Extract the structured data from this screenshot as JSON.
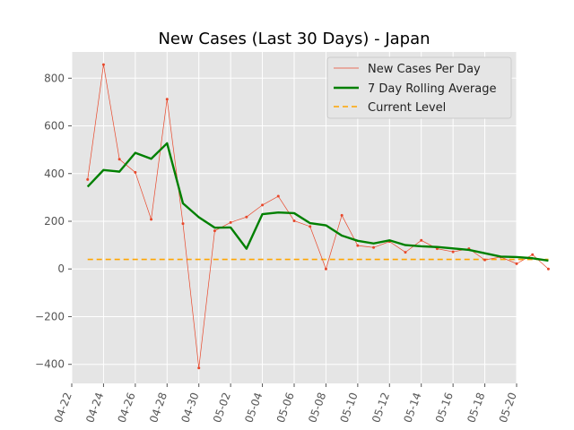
{
  "chart_data": {
    "type": "line",
    "title": "New Cases (Last 30 Days) - Japan",
    "xlabel": "",
    "ylabel": "",
    "xlim": [
      "2020-04-22",
      "2020-05-20"
    ],
    "ylim": [
      -480,
      910
    ],
    "x_ticks": [
      "04-22",
      "04-24",
      "04-26",
      "04-28",
      "04-30",
      "05-02",
      "05-04",
      "05-06",
      "05-08",
      "05-10",
      "05-12",
      "05-14",
      "05-16",
      "05-18",
      "05-20"
    ],
    "y_ticks": [
      -400,
      -200,
      0,
      200,
      400,
      600,
      800
    ],
    "y_tick_labels": [
      "−400",
      "−200",
      "0",
      "200",
      "400",
      "600",
      "800"
    ],
    "grid": true,
    "legend_position": "top-right",
    "series": [
      {
        "name": "New Cases Per Day",
        "color": "#e8482b",
        "style": "thin-line-with-markers",
        "x": [
          "2020-04-23",
          "2020-04-24",
          "2020-04-25",
          "2020-04-26",
          "2020-04-27",
          "2020-04-28",
          "2020-04-29",
          "2020-04-30",
          "2020-05-01",
          "2020-05-02",
          "2020-05-03",
          "2020-05-04",
          "2020-05-05",
          "2020-05-06",
          "2020-05-07",
          "2020-05-08",
          "2020-05-09",
          "2020-05-10",
          "2020-05-11",
          "2020-05-12",
          "2020-05-13",
          "2020-05-14",
          "2020-05-15",
          "2020-05-16",
          "2020-05-17",
          "2020-05-18",
          "2020-05-19",
          "2020-05-20",
          "2020-05-21",
          "2020-05-22"
        ],
        "values": [
          375,
          857,
          460,
          405,
          208,
          712,
          190,
          -415,
          160,
          195,
          218,
          268,
          305,
          202,
          178,
          0,
          225,
          98,
          90,
          115,
          70,
          120,
          85,
          72,
          85,
          38,
          50,
          22,
          60,
          0
        ]
      },
      {
        "name": "7 Day Rolling Average",
        "color": "#008000",
        "style": "thick-line",
        "x": [
          "2020-04-23",
          "2020-04-24",
          "2020-04-25",
          "2020-04-26",
          "2020-04-27",
          "2020-04-28",
          "2020-04-29",
          "2020-04-30",
          "2020-05-01",
          "2020-05-02",
          "2020-05-03",
          "2020-05-04",
          "2020-05-05",
          "2020-05-06",
          "2020-05-07",
          "2020-05-08",
          "2020-05-09",
          "2020-05-10",
          "2020-05-11",
          "2020-05-12",
          "2020-05-13",
          "2020-05-14",
          "2020-05-15",
          "2020-05-16",
          "2020-05-17",
          "2020-05-18",
          "2020-05-19",
          "2020-05-20",
          "2020-05-21",
          "2020-05-22"
        ],
        "values": [
          345,
          415,
          408,
          487,
          462,
          527,
          275,
          217,
          173,
          174,
          85,
          230,
          237,
          234,
          192,
          183,
          140,
          118,
          107,
          120,
          100,
          95,
          92,
          86,
          80,
          66,
          52,
          50,
          45,
          35
        ]
      },
      {
        "name": "Current Level",
        "color": "#ffa500",
        "style": "dashed-line",
        "x": [
          "2020-04-23",
          "2020-05-22"
        ],
        "values": [
          40,
          40
        ]
      }
    ]
  }
}
